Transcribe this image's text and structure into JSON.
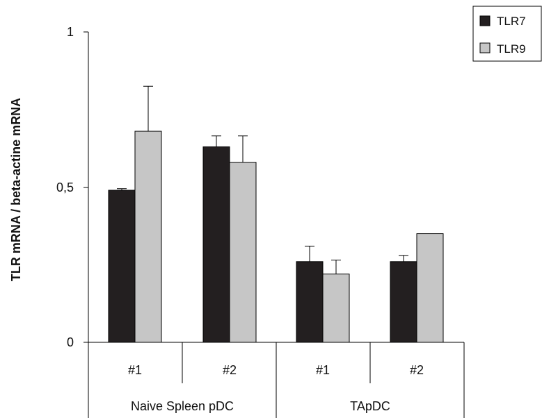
{
  "chart_data": {
    "type": "bar",
    "title": "",
    "ylabel": "TLR mRNA / beta-actine mRNA",
    "xlabel": "",
    "ylim": [
      0,
      1
    ],
    "yticks": [
      {
        "value": 0,
        "label": "0"
      },
      {
        "value": 0.5,
        "label": "0,5"
      },
      {
        "value": 1,
        "label": "1"
      }
    ],
    "categories": [
      "#1",
      "#2",
      "#1",
      "#2"
    ],
    "groups": [
      {
        "label": "Naive Spleen pDC",
        "categories": [
          0,
          1
        ]
      },
      {
        "label": "TApDC",
        "categories": [
          2,
          3
        ]
      }
    ],
    "series": [
      {
        "name": "TLR7",
        "color": "#231f20",
        "values": [
          0.49,
          0.63,
          0.26,
          0.26
        ],
        "errors": [
          0.005,
          0.035,
          0.05,
          0.02
        ]
      },
      {
        "name": "TLR9",
        "color": "#c6c6c6",
        "values": [
          0.68,
          0.58,
          0.22,
          0.35
        ],
        "errors": [
          0.145,
          0.085,
          0.045,
          null
        ]
      }
    ],
    "grid": false,
    "legend_position": "top-right"
  }
}
